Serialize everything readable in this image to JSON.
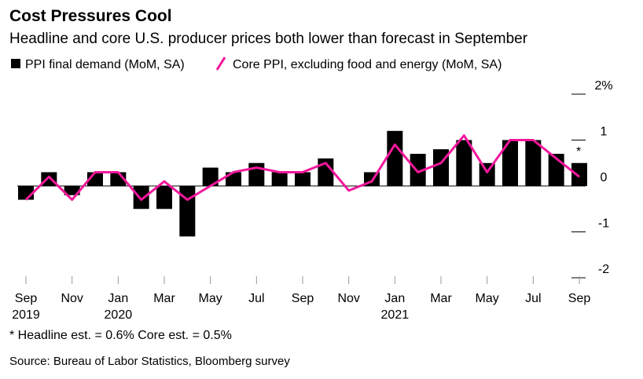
{
  "chart_data": {
    "type": "bar_line",
    "title": "Cost Pressures Cool",
    "subtitle": "Headline and core U.S. producer prices both lower than forecast in September",
    "categories": [
      "Sep",
      null,
      "Nov",
      null,
      "Jan",
      null,
      "Mar",
      null,
      "May",
      null,
      "Jul",
      null,
      "Sep",
      null,
      "Nov",
      null,
      "Jan",
      null,
      "Mar",
      null,
      "May",
      null,
      "Jul",
      null,
      "Sep"
    ],
    "category_years": [
      "2019",
      null,
      null,
      null,
      "2020",
      null,
      null,
      null,
      null,
      null,
      null,
      null,
      null,
      null,
      null,
      null,
      "2021",
      null,
      null,
      null,
      null,
      null,
      null,
      null,
      null
    ],
    "series": [
      {
        "name": "PPI final demand (MoM, SA)",
        "type": "bar",
        "color": "#000000",
        "values": [
          -0.3,
          0.3,
          -0.2,
          0.3,
          0.3,
          -0.5,
          -0.5,
          -1.1,
          0.4,
          0.3,
          0.5,
          0.3,
          0.3,
          0.6,
          0,
          0.3,
          1.2,
          0.7,
          0.8,
          1.0,
          0.5,
          1.0,
          1.0,
          0.7,
          0.5
        ]
      },
      {
        "name": "Core PPI, excluding food and energy (MoM, SA)",
        "type": "line",
        "color": "#f2179b",
        "values": [
          -0.3,
          0.2,
          -0.3,
          0.3,
          0.3,
          -0.3,
          0.1,
          -0.3,
          0,
          0.3,
          0.4,
          0.3,
          0.3,
          0.5,
          -0.1,
          0.1,
          0.9,
          0.3,
          0.5,
          1.1,
          0.3,
          1.0,
          1.0,
          0.6,
          0.2
        ]
      }
    ],
    "ylim": [
      -2,
      2
    ],
    "yticks": [
      {
        "value": 2,
        "label": "2%"
      },
      1,
      0,
      -1,
      -2
    ],
    "annotation": "*",
    "footnote": "* Headline est. = 0.6% Core est. = 0.5%",
    "source": "Source: Bureau of Labor Statistics, Bloomberg survey"
  }
}
